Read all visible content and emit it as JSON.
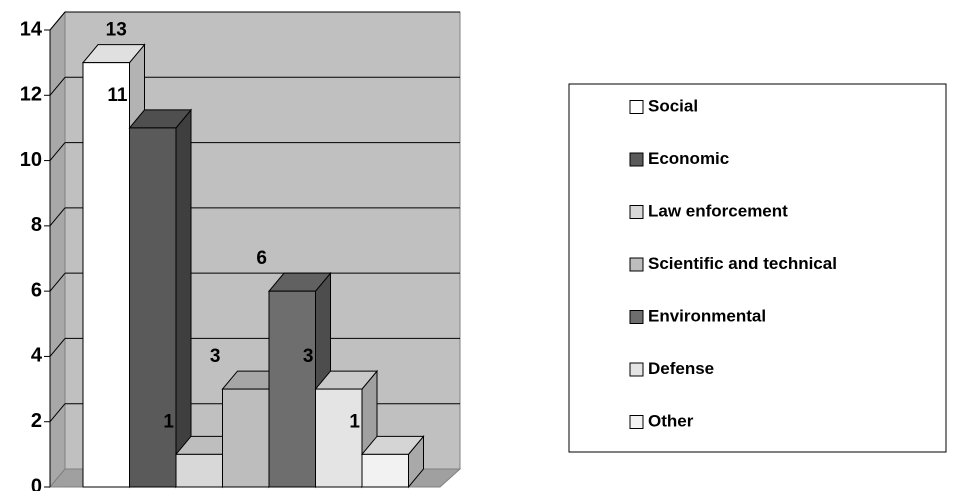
{
  "chart_data": {
    "type": "bar3d",
    "categories": [
      "Social",
      "Economic",
      "Law enforcement",
      "Scientific and technical",
      "Environmental",
      "Defense",
      "Other"
    ],
    "values": [
      13,
      11,
      1,
      3,
      6,
      3,
      1
    ],
    "colors": [
      "#ffffff",
      "#5a5a5a",
      "#d8d8d8",
      "#bdbdbd",
      "#6e6e6e",
      "#e4e4e4",
      "#f2f2f2"
    ],
    "ylim": [
      0,
      14
    ],
    "yticks": [
      0,
      2,
      4,
      6,
      8,
      10,
      12,
      14
    ],
    "grid": true,
    "legend": "right"
  }
}
